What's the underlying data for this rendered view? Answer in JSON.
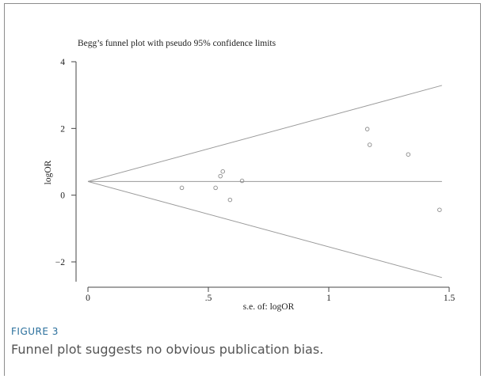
{
  "figure": {
    "label": "FIGURE 3",
    "caption": "Funnel plot suggests no obvious publication bias."
  },
  "chart_data": {
    "type": "scatter",
    "title": "Begg’s funnel plot with pseudo 95% confidence limits",
    "xlabel": "s.e. of: logOR",
    "ylabel": "logOR",
    "xlim": [
      0,
      1.5
    ],
    "ylim": [
      -2.5,
      4
    ],
    "xticks": [
      {
        "value": 0,
        "label": "0"
      },
      {
        "value": 0.5,
        "label": ".5"
      },
      {
        "value": 1,
        "label": "1"
      },
      {
        "value": 1.5,
        "label": "1.5"
      }
    ],
    "yticks": [
      {
        "value": 4,
        "label": "4"
      },
      {
        "value": 2,
        "label": "2"
      },
      {
        "value": 0,
        "label": "0"
      },
      {
        "value": -2,
        "label": "−2"
      }
    ],
    "grid": false,
    "pooled_estimate": 0.41,
    "limits": {
      "x_end": 1.47,
      "upper_end": 3.29,
      "lower_end": -2.47
    },
    "points": [
      {
        "x": 0.39,
        "y": 0.22
      },
      {
        "x": 0.53,
        "y": 0.22
      },
      {
        "x": 0.55,
        "y": 0.57
      },
      {
        "x": 0.56,
        "y": 0.71
      },
      {
        "x": 0.59,
        "y": -0.14
      },
      {
        "x": 0.64,
        "y": 0.43
      },
      {
        "x": 1.16,
        "y": 1.98
      },
      {
        "x": 1.17,
        "y": 1.51
      },
      {
        "x": 1.33,
        "y": 1.22
      },
      {
        "x": 1.46,
        "y": -0.44
      }
    ],
    "colors": {
      "axis": "#444444",
      "line": "#9a9a9a",
      "marker": "#8a8a8a"
    }
  }
}
